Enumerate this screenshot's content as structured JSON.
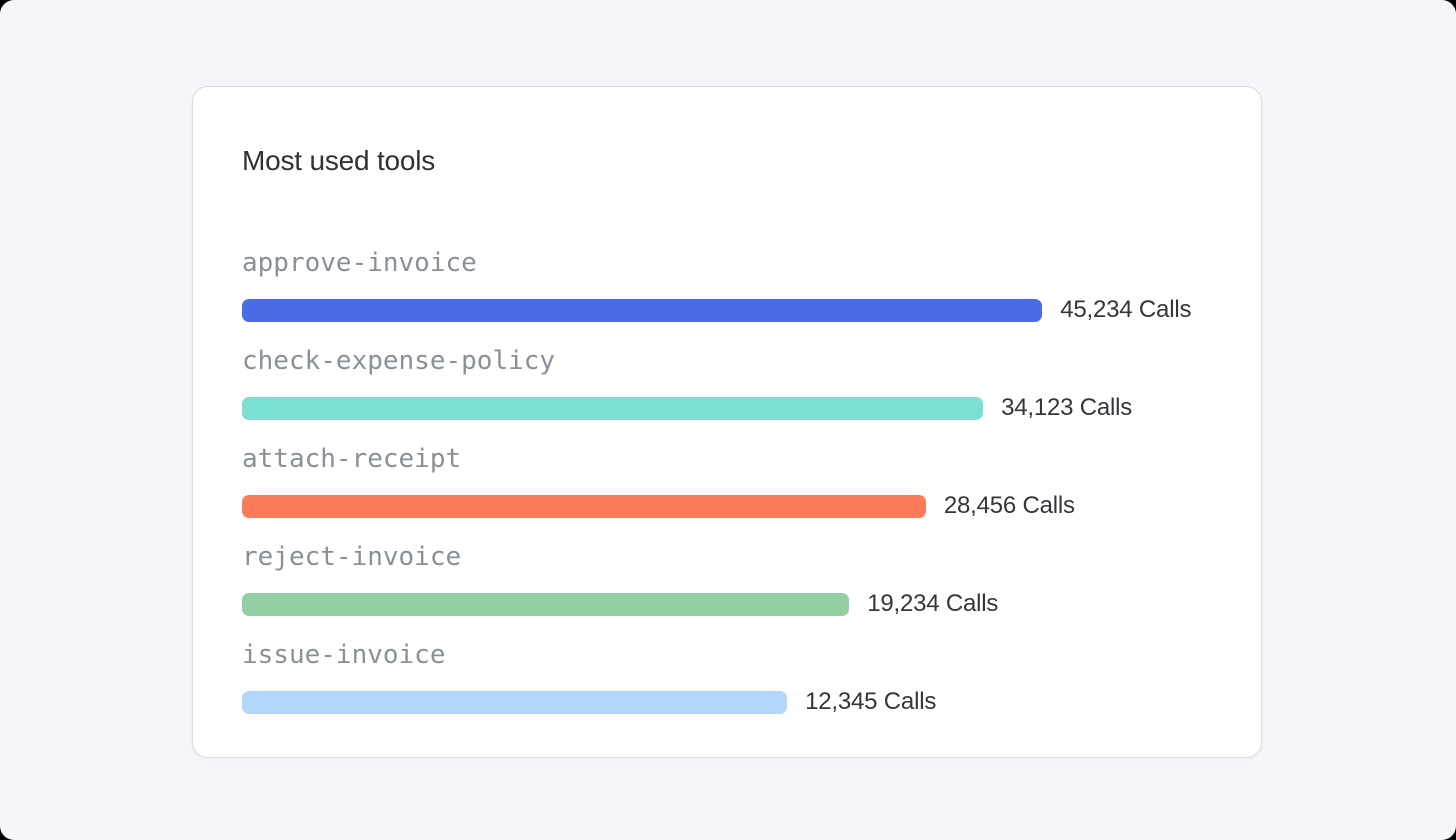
{
  "page": {
    "background_color": "#F5F6FA",
    "card_background": "#FFFFFF",
    "card_border_color": "#D9DCE2"
  },
  "card": {
    "title": "Most used tools"
  },
  "chart_data": {
    "type": "bar",
    "orientation": "horizontal",
    "title": "Most used tools",
    "unit": "Calls",
    "grid": false,
    "legend_position": "none",
    "categories": [
      "approve-invoice",
      "check-expense-policy",
      "attach-receipt",
      "reject-invoice",
      "issue-invoice"
    ],
    "values": [
      45234,
      34123,
      28456,
      19234,
      12345
    ],
    "bars": [
      {
        "label": "approve-invoice",
        "value": 45234,
        "value_label": "45,234 Calls",
        "color": "#4A6BE6",
        "width_pct": 82.5
      },
      {
        "label": "check-expense-policy",
        "value": 34123,
        "value_label": "34,123 Calls",
        "color": "#7BDFD2",
        "width_pct": 76.4
      },
      {
        "label": "attach-receipt",
        "value": 28456,
        "value_label": "28,456 Calls",
        "color": "#FB7A57",
        "width_pct": 70.5
      },
      {
        "label": "reject-invoice",
        "value": 19234,
        "value_label": "19,234 Calls",
        "color": "#93CFA2",
        "width_pct": 62.6
      },
      {
        "label": "issue-invoice",
        "value": 12345,
        "value_label": "12,345 Calls",
        "color": "#B3D6FB",
        "width_pct": 56.2
      }
    ]
  }
}
